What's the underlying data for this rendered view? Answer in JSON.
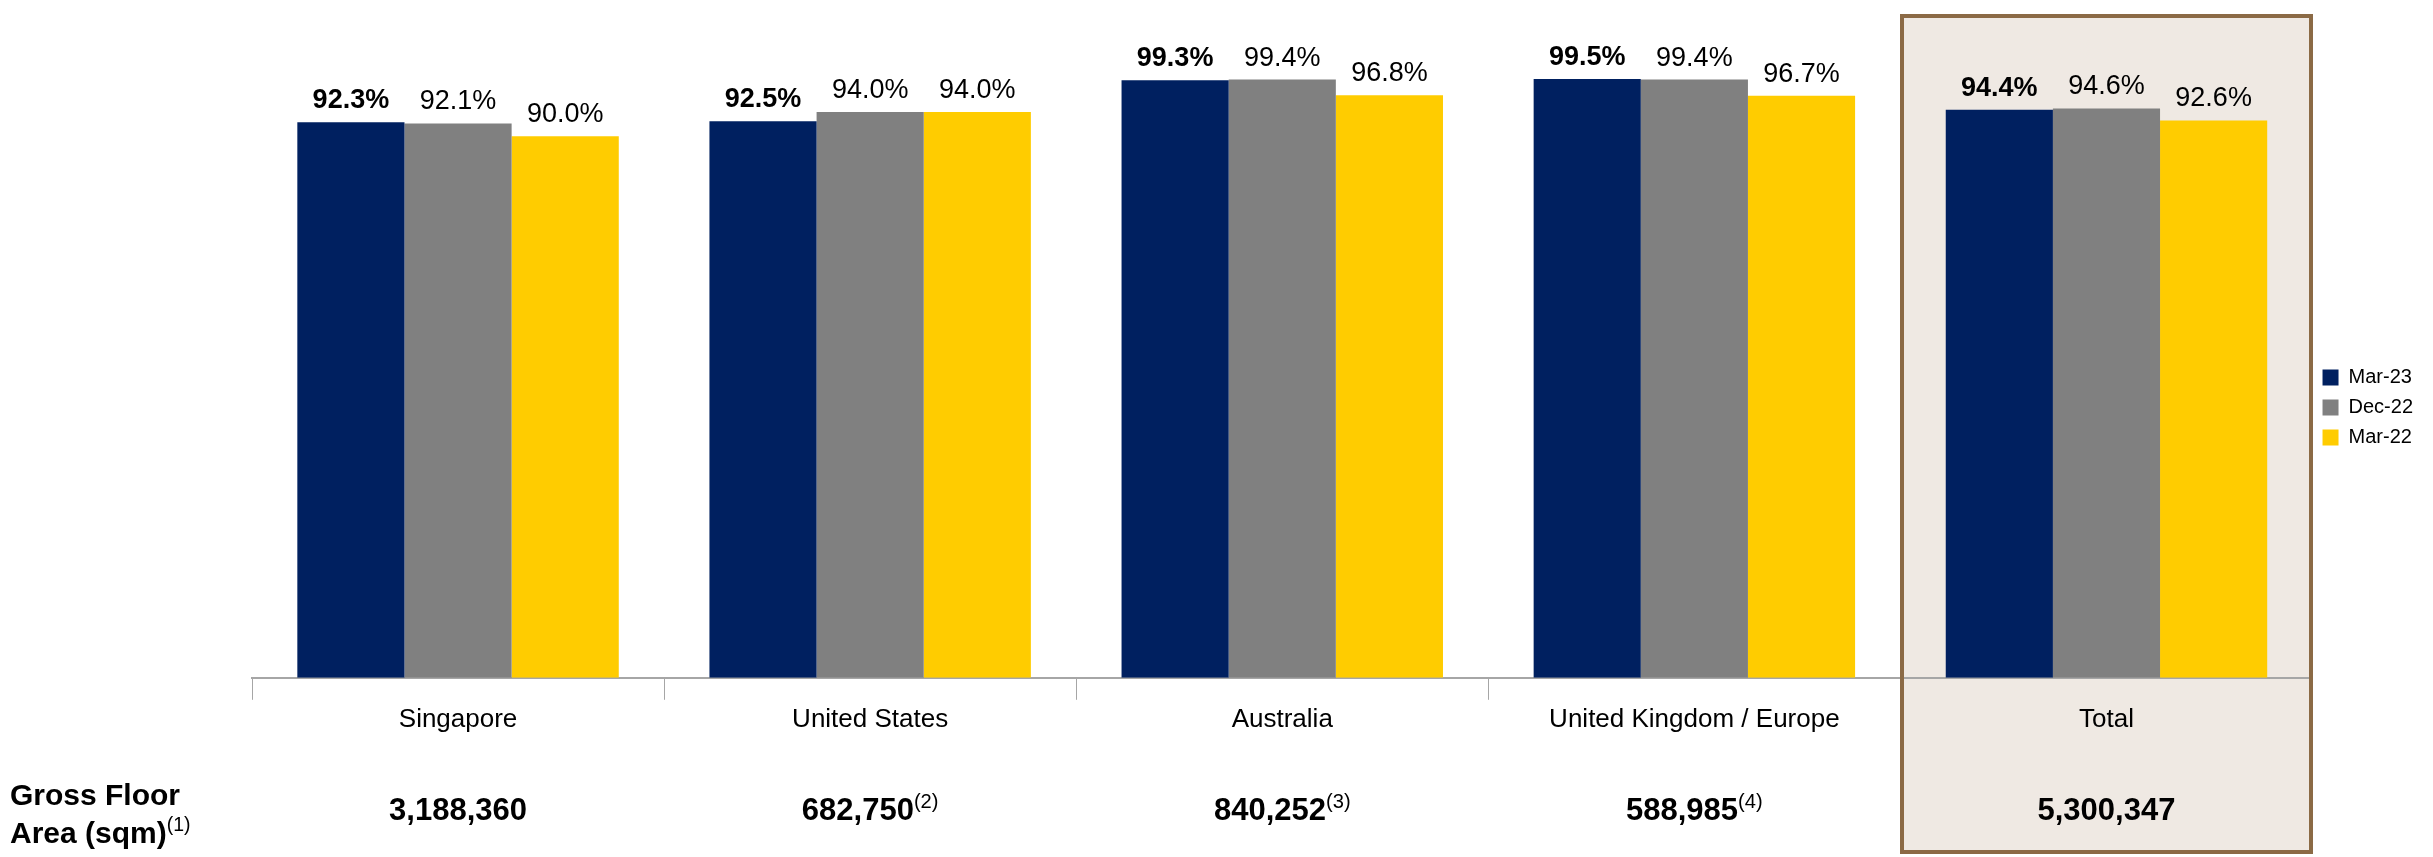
{
  "chart_data": {
    "type": "bar",
    "categories": [
      "Singapore",
      "United States",
      "Australia",
      "United Kingdom / Europe",
      "Total"
    ],
    "series": [
      {
        "name": "Mar-23",
        "color": "#002060",
        "values": [
          92.3,
          92.5,
          99.3,
          99.5,
          94.4
        ],
        "value_labels": [
          "92.3%",
          "92.5%",
          "99.3%",
          "99.5%",
          "94.4%"
        ]
      },
      {
        "name": "Dec-22",
        "color": "#808080",
        "values": [
          92.1,
          94.0,
          99.4,
          99.4,
          94.6
        ],
        "value_labels": [
          "92.1%",
          "94.0%",
          "99.4%",
          "99.4%",
          "94.6%"
        ]
      },
      {
        "name": "Mar-22",
        "color": "#ffcc00",
        "values": [
          90.0,
          94.0,
          96.8,
          96.7,
          92.6
        ],
        "value_labels": [
          "90.0%",
          "94.0%",
          "96.8%",
          "96.7%",
          "92.6%"
        ]
      }
    ],
    "grid": false,
    "legend": "right",
    "tick_labels": "x",
    "bands": [
      {
        "axis": "x",
        "from": "Total",
        "to": "Total",
        "color": "#efe9e3"
      }
    ],
    "annotations": [
      "Gross Floor Area (sqm)$^{(1)}$",
      "3,188,360",
      "682,750$^{(2)}$",
      "840,252$^{(3)}$",
      "588,985$^{(4)}$",
      "5,300,347"
    ]
  }
}
